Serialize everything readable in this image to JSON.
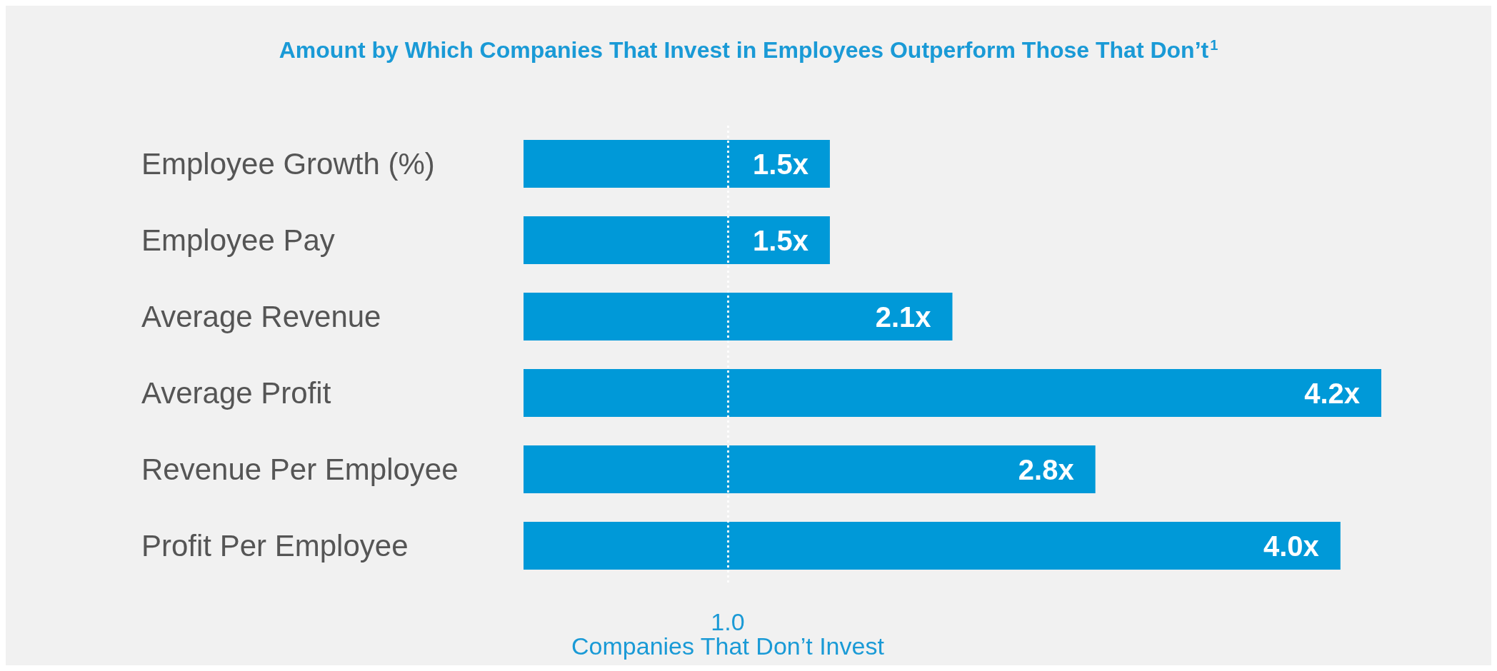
{
  "chart_data": {
    "type": "bar",
    "orientation": "horizontal",
    "title": "Amount by Which Companies That Invest in Employees Outperform Those That Don’t$^{1}$",
    "categories": [
      "Employee Growth (%)",
      "Employee Pay",
      "Average Revenue",
      "Average Profit",
      "Revenue Per Employee",
      "Profit Per Employee"
    ],
    "values": [
      1.5,
      1.5,
      2.1,
      4.2,
      2.8,
      4.0
    ],
    "value_labels": [
      "1.5x",
      "1.5x",
      "2.1x",
      "4.2x",
      "2.8x",
      "4.0x"
    ],
    "color": "#0099d8",
    "xlim": [
      0,
      4.2
    ],
    "xticks": [
      {
        "value": 1,
        "label": "1.0"
      }
    ],
    "ref_lines": [
      {
        "axis": "x",
        "value": 1,
        "label": "Companies That Don’t Invest",
        "color": "#ffffff",
        "line_style": "dotted"
      }
    ],
    "grid": false
  }
}
